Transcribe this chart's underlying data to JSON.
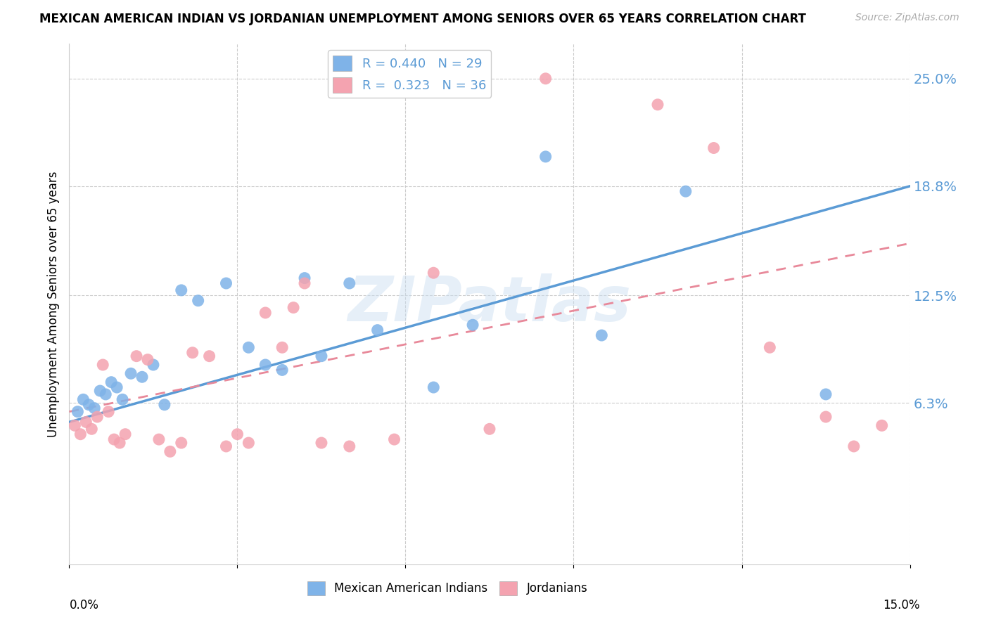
{
  "title": "MEXICAN AMERICAN INDIAN VS JORDANIAN UNEMPLOYMENT AMONG SENIORS OVER 65 YEARS CORRELATION CHART",
  "source": "Source: ZipAtlas.com",
  "ylabel": "Unemployment Among Seniors over 65 years",
  "ytick_labels": [
    "6.3%",
    "12.5%",
    "18.8%",
    "25.0%"
  ],
  "ytick_values": [
    6.3,
    12.5,
    18.8,
    25.0
  ],
  "xlim": [
    0,
    15
  ],
  "ylim": [
    -3,
    27
  ],
  "blue_R": "0.440",
  "blue_N": "29",
  "pink_R": "0.323",
  "pink_N": "36",
  "blue_color": "#7fb3e8",
  "pink_color": "#f4a3b0",
  "line_blue": "#5b9bd5",
  "line_pink": "#e8899a",
  "watermark": "ZIPatlas",
  "blue_line_x0": 0,
  "blue_line_y0": 5.2,
  "blue_line_x1": 15,
  "blue_line_y1": 18.8,
  "pink_line_x0": 0,
  "pink_line_y0": 5.8,
  "pink_line_x1": 15,
  "pink_line_y1": 15.5,
  "blue_scatter_x": [
    0.15,
    0.25,
    0.35,
    0.45,
    0.55,
    0.65,
    0.75,
    0.85,
    0.95,
    1.1,
    1.3,
    1.5,
    1.7,
    2.0,
    2.3,
    2.8,
    3.2,
    3.5,
    3.8,
    4.2,
    4.5,
    5.0,
    5.5,
    6.5,
    7.2,
    8.5,
    9.5,
    11.0,
    13.5
  ],
  "blue_scatter_y": [
    5.8,
    6.5,
    6.2,
    6.0,
    7.0,
    6.8,
    7.5,
    7.2,
    6.5,
    8.0,
    7.8,
    8.5,
    6.2,
    12.8,
    12.2,
    13.2,
    9.5,
    8.5,
    8.2,
    13.5,
    9.0,
    13.2,
    10.5,
    7.2,
    10.8,
    20.5,
    10.2,
    18.5,
    6.8
  ],
  "pink_scatter_x": [
    0.1,
    0.2,
    0.3,
    0.4,
    0.5,
    0.6,
    0.7,
    0.8,
    0.9,
    1.0,
    1.2,
    1.4,
    1.6,
    1.8,
    2.0,
    2.2,
    2.5,
    2.8,
    3.0,
    3.2,
    3.5,
    3.8,
    4.0,
    4.2,
    4.5,
    5.0,
    5.8,
    6.5,
    7.5,
    8.5,
    10.5,
    11.5,
    12.5,
    13.5,
    14.0,
    14.5
  ],
  "pink_scatter_y": [
    5.0,
    4.5,
    5.2,
    4.8,
    5.5,
    8.5,
    5.8,
    4.2,
    4.0,
    4.5,
    9.0,
    8.8,
    4.2,
    3.5,
    4.0,
    9.2,
    9.0,
    3.8,
    4.5,
    4.0,
    11.5,
    9.5,
    11.8,
    13.2,
    4.0,
    3.8,
    4.2,
    13.8,
    4.8,
    25.0,
    23.5,
    21.0,
    9.5,
    5.5,
    3.8,
    5.0
  ]
}
